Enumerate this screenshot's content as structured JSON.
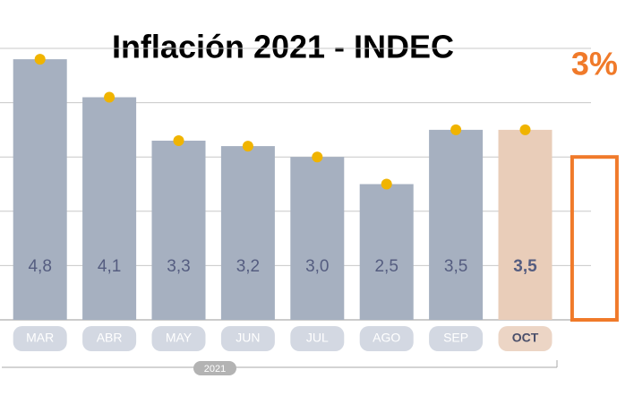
{
  "chart_data": {
    "type": "bar",
    "title": "Inflación 2021 - INDEC",
    "categories": [
      "MAR",
      "ABR",
      "MAY",
      "JUN",
      "JUL",
      "AGO",
      "SEP",
      "OCT"
    ],
    "values": [
      4.8,
      4.1,
      3.3,
      3.2,
      3.0,
      2.5,
      3.5,
      3.5
    ],
    "value_labels": [
      "4,8",
      "4,1",
      "3,3",
      "3,2",
      "3,0",
      "2,5",
      "3,5",
      "3,5"
    ],
    "colors": [
      "#a6b0c0",
      "#a6b0c0",
      "#a6b0c0",
      "#a6b0c0",
      "#a6b0c0",
      "#a6b0c0",
      "#a6b0c0",
      "#e9cdb9"
    ],
    "marker_color": "#f0b400",
    "ylim": [
      0,
      5
    ],
    "yticks": [
      0,
      1,
      2,
      3,
      4,
      5
    ],
    "grid": true,
    "x_group_label": "2021",
    "annotation": {
      "label": "3%",
      "value": 3,
      "color": "#f07a2a"
    }
  }
}
